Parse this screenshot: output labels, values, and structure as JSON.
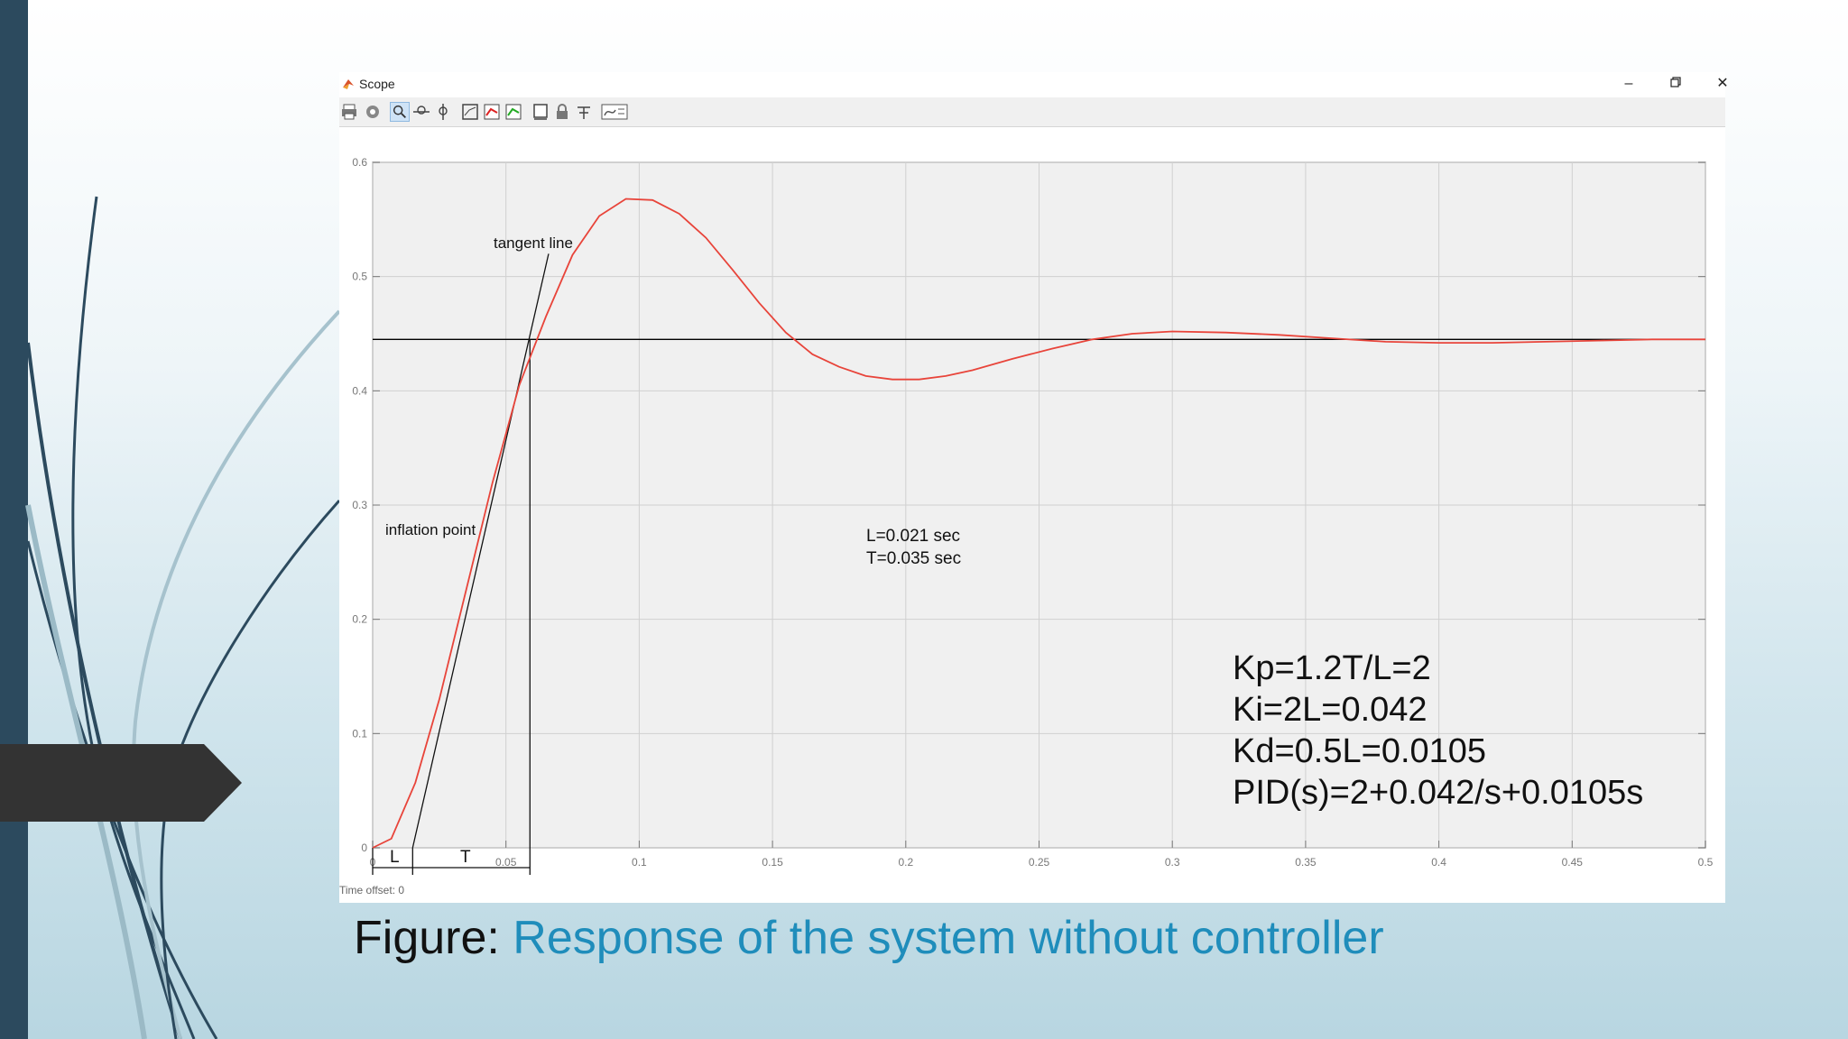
{
  "window": {
    "title": "Scope"
  },
  "toolbar": {
    "icons": [
      "print-icon",
      "parameters-icon",
      "zoom-icon",
      "zoom-x-icon",
      "zoom-y-icon",
      "autoscale-icon",
      "save-axes-icon",
      "restore-axes-icon",
      "floating-scope-icon",
      "lock-axes-icon",
      "signal-selection-icon",
      "legend-icon"
    ]
  },
  "annotations": {
    "tangent_line": "tangent line",
    "inflation_point": "inflation point",
    "L_label": "L",
    "T_label": "T",
    "L_value": "L=0.021 sec",
    "T_value": "T=0.035 sec"
  },
  "pid": {
    "kp": "Kp=1.2T/L=2",
    "ki": "Ki=2L=0.042",
    "kd": "Kd=0.5L=0.0105",
    "pid": "PID(s)=2+0.042/s+0.0105s"
  },
  "time_offset": {
    "label": "Time offset:",
    "value": "0"
  },
  "caption": {
    "prefix": "Figure: ",
    "text": "Response of the system without controller"
  },
  "colors": {
    "response": "#e8443a",
    "steady_line": "#000000",
    "caption_accent": "#1f8dbb",
    "slide_bar": "#2c4a5e"
  },
  "chart_data": {
    "type": "line",
    "title": "",
    "xlabel": "",
    "ylabel": "",
    "xlim": [
      0,
      0.5
    ],
    "ylim": [
      0,
      0.6
    ],
    "x_ticks": [
      0,
      0.05,
      0.1,
      0.15,
      0.2,
      0.25,
      0.3,
      0.35,
      0.4,
      0.45,
      0.5
    ],
    "x_tick_labels": [
      "0",
      "0.05",
      "0.1",
      "0.15",
      "0.2",
      "0.25",
      "0.3",
      "0.35",
      "0.4",
      "0.45",
      "0.5"
    ],
    "y_ticks": [
      0,
      0.1,
      0.2,
      0.3,
      0.4,
      0.5,
      0.6
    ],
    "y_tick_labels": [
      "0",
      "0.1",
      "0.2",
      "0.3",
      "0.4",
      "0.5",
      "0.6"
    ],
    "grid": true,
    "series": [
      {
        "x": [
          0,
          0.007,
          0.016,
          0.025,
          0.035,
          0.045,
          0.055,
          0.065,
          0.075,
          0.085,
          0.095,
          0.105,
          0.115,
          0.125,
          0.135,
          0.145,
          0.155,
          0.165,
          0.175,
          0.185,
          0.195,
          0.205,
          0.215,
          0.225,
          0.24,
          0.255,
          0.27,
          0.285,
          0.3,
          0.32,
          0.34,
          0.36,
          0.38,
          0.4,
          0.42,
          0.44,
          0.46,
          0.48,
          0.5
        ],
        "y": [
          0,
          0.008,
          0.057,
          0.13,
          0.225,
          0.32,
          0.405,
          0.465,
          0.519,
          0.553,
          0.568,
          0.567,
          0.555,
          0.534,
          0.506,
          0.477,
          0.451,
          0.432,
          0.421,
          0.413,
          0.41,
          0.41,
          0.413,
          0.418,
          0.428,
          0.437,
          0.445,
          0.45,
          0.452,
          0.451,
          0.449,
          0.446,
          0.443,
          0.442,
          0.442,
          0.443,
          0.444,
          0.445,
          0.445
        ]
      }
    ],
    "reference_line": {
      "y": 0.445
    },
    "tangent_line": {
      "x": [
        0.015,
        0.066
      ],
      "y": [
        0,
        0.52
      ]
    },
    "markers": {
      "L_end_x": 0.015,
      "T_end_x": 0.059
    }
  }
}
